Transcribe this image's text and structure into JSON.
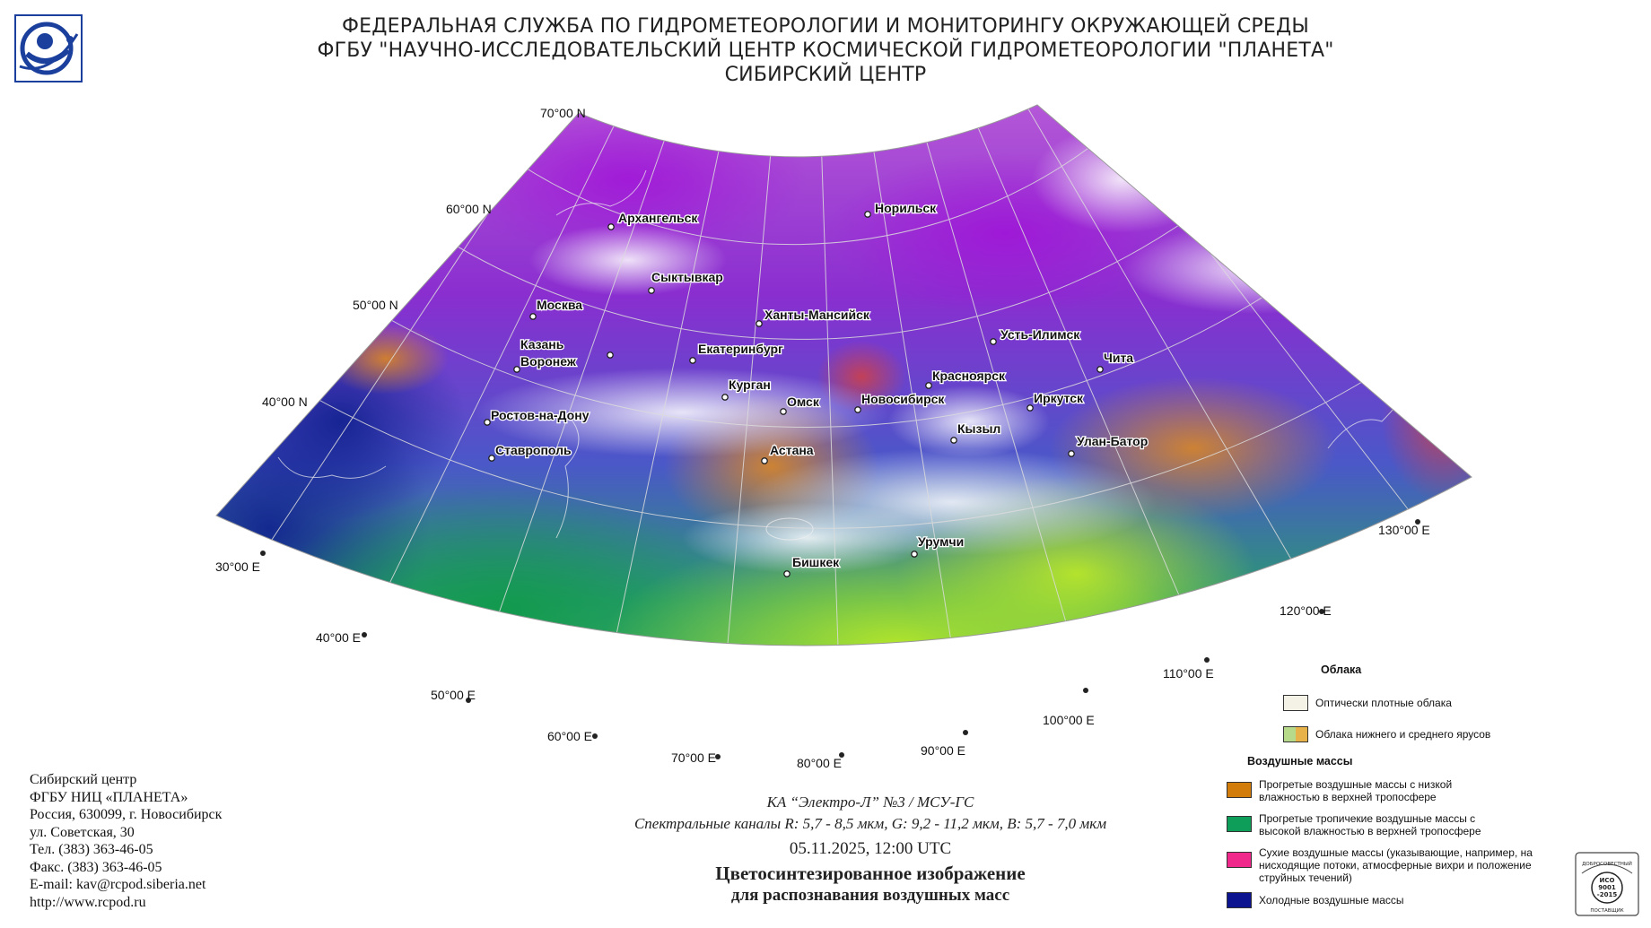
{
  "header": {
    "line1": "ФЕДЕРАЛЬНАЯ СЛУЖБА ПО ГИДРОМЕТЕОРОЛОГИИ И МОНИТОРИНГУ ОКРУЖАЮЩЕЙ СРЕДЫ",
    "line2": "ФГБУ \"НАУЧНО-ИССЛЕДОВАТЕЛЬСКИЙ ЦЕНТР КОСМИЧЕСКОЙ ГИДРОМЕТЕОРОЛОГИИ \"ПЛАНЕТА\"",
    "line3": "СИБИРСКИЙ ЦЕНТР"
  },
  "map": {
    "lat_labels": [
      "70°00 N",
      "60°00 N",
      "50°00 N",
      "40°00 N"
    ],
    "lon_labels": [
      "30°00 E",
      "40°00 E",
      "50°00 E",
      "60°00 E",
      "70°00 E",
      "80°00 E",
      "90°00 E",
      "100°00 E",
      "110°00 E",
      "120°00 E",
      "130°00 E"
    ],
    "cities": [
      "Архангельск",
      "Норильск",
      "Сыктывкар",
      "Москва",
      "Ханты-Мансийск",
      "Казань",
      "Усть-Илимск",
      "Воронеж",
      "Екатеринбург",
      "Красноярск",
      "Чита",
      "Курган",
      "Иркутск",
      "Омск",
      "Новосибирск",
      "Ростов-на-Дону",
      "Кызыл",
      "Улан-Батор",
      "Астана",
      "Ставрополь",
      "Урумчи",
      "Бишкек"
    ]
  },
  "contact": {
    "lines": [
      "Сибирский центр",
      "ФГБУ НИЦ «ПЛАНЕТА»",
      "Россия, 630099, г. Новосибирск",
      "ул. Советская, 30",
      "Тел. (383) 363-46-05",
      "Факс. (383) 363-46-05",
      "E-mail: kav@rcpod.siberia.net",
      "http://www.rcpod.ru"
    ]
  },
  "caption": {
    "satellite": "КА “Электро-Л” №3 / МСУ-ГС",
    "channels": "Спектральные каналы R: 5,7 - 8,5 мкм, G: 9,2 - 11,2 мкм, B: 5,7 - 7,0 мкм",
    "datetime": "05.11.2025, 12:00 UTC",
    "title1": "Цветосинтезированное изображение",
    "title2": "для распознавания воздушных масс"
  },
  "legend": {
    "clouds_title": "Облака",
    "clouds": [
      {
        "label": "Оптически плотные облака",
        "colors": [
          "#f4f2e6"
        ]
      },
      {
        "label": "Облака нижнего и среднего ярусов",
        "colors": [
          "#b6d98a",
          "#e7b24a"
        ]
      }
    ],
    "airmasses_title": "Воздушные массы",
    "airmasses": [
      {
        "label": "Прогретые воздушные массы с низкой влажностью в верхней тропосфере",
        "color": "#d27c0c"
      },
      {
        "label": "Прогретые тропичекие воздушные массы с высокой влажностью в верхней тропосфере",
        "color": "#0f9e5a"
      },
      {
        "label": "Сухие воздушные массы (указывающие, например, на нисходящие потоки, атмосферные вихри и положение струйных течений)",
        "color": "#f0288c"
      },
      {
        "label": "Холодные воздушные массы",
        "color": "#0c1490"
      }
    ]
  },
  "iso": {
    "top": "ДОБРОСОВЕСТНЫЙ",
    "l1": "ИСО",
    "l2": "9001",
    "l3": "-2015",
    "bottom": "ПОСТАВЩИК"
  }
}
